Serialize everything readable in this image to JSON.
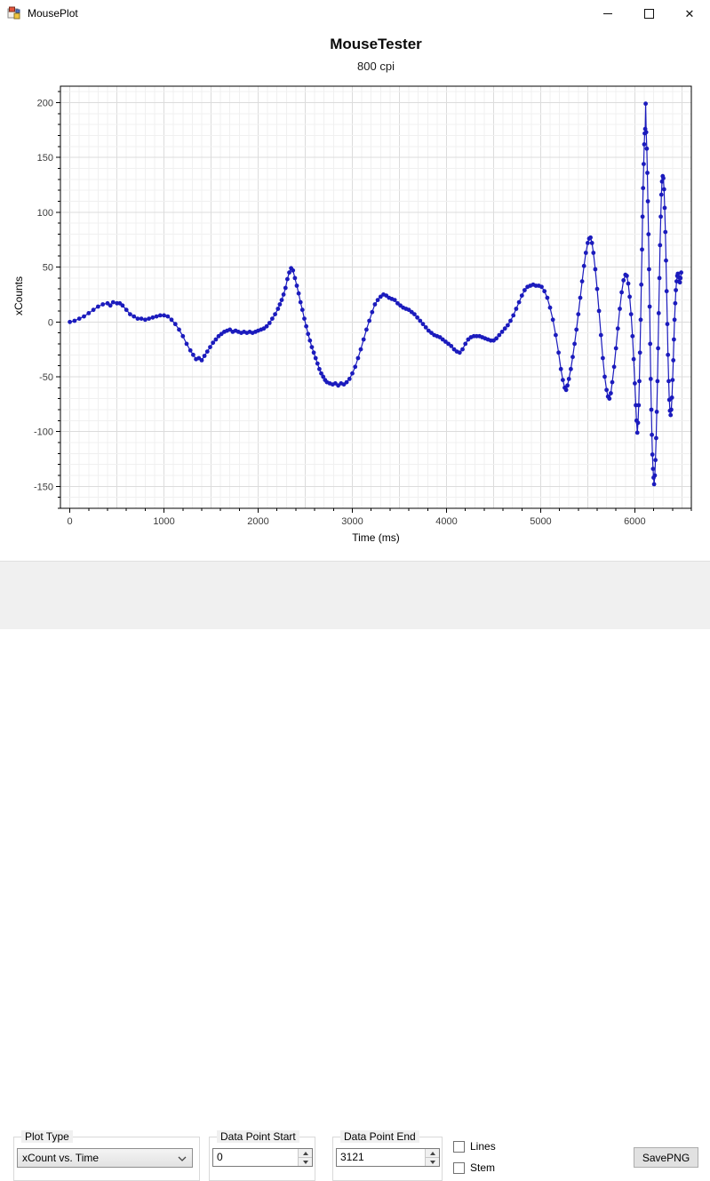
{
  "window": {
    "title": "MousePlot",
    "close_glyph": "✕"
  },
  "chart": {
    "title": "MouseTester",
    "subtitle": "800 cpi"
  },
  "chart_data": {
    "type": "line",
    "title": "MouseTester",
    "subtitle": "800 cpi",
    "xlabel": "Time (ms)",
    "ylabel": "xCounts",
    "xlim": [
      -100,
      6600
    ],
    "ylim": [
      -170,
      215
    ],
    "x_ticks": [
      0,
      1000,
      2000,
      3000,
      4000,
      5000,
      6000
    ],
    "y_ticks": [
      -150,
      -100,
      -50,
      0,
      50,
      100,
      150,
      200
    ],
    "x_minor_step": 200,
    "y_minor_step": 10,
    "grid": true,
    "legend_position": "none",
    "marker": "circle",
    "line_color": "#1b1bbd",
    "marker_color": "#1b1bbd",
    "grid_minor_color": "#f0f0f0",
    "grid_major_color": "#dcdcdc",
    "series": [
      {
        "name": "xCount",
        "points": [
          [
            0,
            0
          ],
          [
            50,
            1
          ],
          [
            100,
            3
          ],
          [
            150,
            5
          ],
          [
            200,
            8
          ],
          [
            250,
            11
          ],
          [
            300,
            14
          ],
          [
            350,
            16
          ],
          [
            400,
            17
          ],
          [
            430,
            15
          ],
          [
            460,
            18
          ],
          [
            500,
            17
          ],
          [
            530,
            17
          ],
          [
            560,
            15
          ],
          [
            600,
            11
          ],
          [
            640,
            7
          ],
          [
            680,
            5
          ],
          [
            720,
            3
          ],
          [
            760,
            3
          ],
          [
            800,
            2
          ],
          [
            840,
            3
          ],
          [
            880,
            4
          ],
          [
            920,
            5
          ],
          [
            960,
            6
          ],
          [
            1000,
            6
          ],
          [
            1040,
            5
          ],
          [
            1080,
            2
          ],
          [
            1120,
            -2
          ],
          [
            1160,
            -7
          ],
          [
            1200,
            -13
          ],
          [
            1240,
            -20
          ],
          [
            1280,
            -26
          ],
          [
            1310,
            -30
          ],
          [
            1340,
            -34
          ],
          [
            1370,
            -33
          ],
          [
            1400,
            -35
          ],
          [
            1430,
            -31
          ],
          [
            1460,
            -27
          ],
          [
            1490,
            -23
          ],
          [
            1520,
            -19
          ],
          [
            1550,
            -16
          ],
          [
            1580,
            -13
          ],
          [
            1610,
            -11
          ],
          [
            1640,
            -9
          ],
          [
            1670,
            -8
          ],
          [
            1700,
            -7
          ],
          [
            1730,
            -9
          ],
          [
            1760,
            -8
          ],
          [
            1790,
            -9
          ],
          [
            1820,
            -10
          ],
          [
            1850,
            -9
          ],
          [
            1880,
            -10
          ],
          [
            1910,
            -9
          ],
          [
            1940,
            -10
          ],
          [
            1970,
            -9
          ],
          [
            2000,
            -8
          ],
          [
            2030,
            -7
          ],
          [
            2060,
            -6
          ],
          [
            2090,
            -4
          ],
          [
            2120,
            -1
          ],
          [
            2150,
            3
          ],
          [
            2180,
            7
          ],
          [
            2210,
            12
          ],
          [
            2230,
            16
          ],
          [
            2250,
            20
          ],
          [
            2270,
            25
          ],
          [
            2290,
            31
          ],
          [
            2310,
            39
          ],
          [
            2330,
            45
          ],
          [
            2350,
            49
          ],
          [
            2370,
            47
          ],
          [
            2390,
            40
          ],
          [
            2410,
            33
          ],
          [
            2430,
            26
          ],
          [
            2450,
            18
          ],
          [
            2470,
            11
          ],
          [
            2490,
            3
          ],
          [
            2510,
            -4
          ],
          [
            2530,
            -11
          ],
          [
            2550,
            -17
          ],
          [
            2570,
            -23
          ],
          [
            2590,
            -28
          ],
          [
            2610,
            -33
          ],
          [
            2630,
            -38
          ],
          [
            2650,
            -43
          ],
          [
            2670,
            -47
          ],
          [
            2690,
            -50
          ],
          [
            2710,
            -53
          ],
          [
            2730,
            -55
          ],
          [
            2760,
            -56
          ],
          [
            2790,
            -57
          ],
          [
            2820,
            -56
          ],
          [
            2850,
            -58
          ],
          [
            2880,
            -56
          ],
          [
            2910,
            -57
          ],
          [
            2940,
            -55
          ],
          [
            2970,
            -52
          ],
          [
            3000,
            -47
          ],
          [
            3030,
            -41
          ],
          [
            3060,
            -33
          ],
          [
            3090,
            -25
          ],
          [
            3120,
            -16
          ],
          [
            3150,
            -7
          ],
          [
            3180,
            1
          ],
          [
            3210,
            9
          ],
          [
            3240,
            16
          ],
          [
            3270,
            20
          ],
          [
            3300,
            23
          ],
          [
            3330,
            25
          ],
          [
            3360,
            24
          ],
          [
            3390,
            22
          ],
          [
            3420,
            21
          ],
          [
            3450,
            20
          ],
          [
            3480,
            17
          ],
          [
            3510,
            15
          ],
          [
            3540,
            13
          ],
          [
            3570,
            12
          ],
          [
            3600,
            11
          ],
          [
            3630,
            9
          ],
          [
            3660,
            7
          ],
          [
            3690,
            4
          ],
          [
            3720,
            1
          ],
          [
            3750,
            -2
          ],
          [
            3780,
            -5
          ],
          [
            3810,
            -8
          ],
          [
            3840,
            -10
          ],
          [
            3870,
            -12
          ],
          [
            3900,
            -13
          ],
          [
            3930,
            -14
          ],
          [
            3960,
            -16
          ],
          [
            3990,
            -18
          ],
          [
            4020,
            -20
          ],
          [
            4050,
            -22
          ],
          [
            4080,
            -25
          ],
          [
            4110,
            -27
          ],
          [
            4140,
            -28
          ],
          [
            4170,
            -25
          ],
          [
            4200,
            -20
          ],
          [
            4230,
            -16
          ],
          [
            4260,
            -14
          ],
          [
            4290,
            -13
          ],
          [
            4320,
            -13
          ],
          [
            4350,
            -13
          ],
          [
            4380,
            -14
          ],
          [
            4410,
            -15
          ],
          [
            4440,
            -16
          ],
          [
            4470,
            -17
          ],
          [
            4500,
            -17
          ],
          [
            4530,
            -15
          ],
          [
            4560,
            -12
          ],
          [
            4590,
            -9
          ],
          [
            4620,
            -6
          ],
          [
            4650,
            -3
          ],
          [
            4680,
            1
          ],
          [
            4710,
            6
          ],
          [
            4740,
            12
          ],
          [
            4770,
            18
          ],
          [
            4800,
            24
          ],
          [
            4830,
            29
          ],
          [
            4860,
            32
          ],
          [
            4890,
            33
          ],
          [
            4920,
            34
          ],
          [
            4950,
            33
          ],
          [
            4980,
            33
          ],
          [
            5010,
            32
          ],
          [
            5040,
            28
          ],
          [
            5070,
            22
          ],
          [
            5100,
            13
          ],
          [
            5130,
            2
          ],
          [
            5160,
            -12
          ],
          [
            5190,
            -28
          ],
          [
            5215,
            -43
          ],
          [
            5235,
            -53
          ],
          [
            5255,
            -60
          ],
          [
            5270,
            -62
          ],
          [
            5285,
            -58
          ],
          [
            5300,
            -52
          ],
          [
            5320,
            -43
          ],
          [
            5340,
            -32
          ],
          [
            5360,
            -20
          ],
          [
            5380,
            -7
          ],
          [
            5400,
            7
          ],
          [
            5420,
            22
          ],
          [
            5440,
            37
          ],
          [
            5460,
            51
          ],
          [
            5480,
            63
          ],
          [
            5500,
            72
          ],
          [
            5515,
            76
          ],
          [
            5530,
            77
          ],
          [
            5545,
            72
          ],
          [
            5560,
            63
          ],
          [
            5580,
            48
          ],
          [
            5600,
            30
          ],
          [
            5620,
            10
          ],
          [
            5640,
            -12
          ],
          [
            5660,
            -33
          ],
          [
            5680,
            -50
          ],
          [
            5700,
            -62
          ],
          [
            5715,
            -68
          ],
          [
            5730,
            -70
          ],
          [
            5745,
            -65
          ],
          [
            5760,
            -55
          ],
          [
            5780,
            -41
          ],
          [
            5800,
            -24
          ],
          [
            5820,
            -6
          ],
          [
            5840,
            12
          ],
          [
            5860,
            27
          ],
          [
            5880,
            38
          ],
          [
            5900,
            43
          ],
          [
            5915,
            42
          ],
          [
            5930,
            35
          ],
          [
            5945,
            23
          ],
          [
            5960,
            7
          ],
          [
            5975,
            -13
          ],
          [
            5988,
            -34
          ],
          [
            6000,
            -56
          ],
          [
            6010,
            -76
          ],
          [
            6018,
            -90
          ],
          [
            6026,
            -101
          ],
          [
            6034,
            -92
          ],
          [
            6041,
            -76
          ],
          [
            6048,
            -54
          ],
          [
            6055,
            -28
          ],
          [
            6062,
            2
          ],
          [
            6069,
            34
          ],
          [
            6076,
            66
          ],
          [
            6082,
            96
          ],
          [
            6088,
            122
          ],
          [
            6094,
            144
          ],
          [
            6100,
            162
          ],
          [
            6105,
            172
          ],
          [
            6110,
            176
          ],
          [
            6115,
            199
          ],
          [
            6121,
            173
          ],
          [
            6127,
            158
          ],
          [
            6133,
            136
          ],
          [
            6139,
            110
          ],
          [
            6145,
            80
          ],
          [
            6151,
            48
          ],
          [
            6157,
            14
          ],
          [
            6163,
            -20
          ],
          [
            6169,
            -52
          ],
          [
            6175,
            -80
          ],
          [
            6181,
            -103
          ],
          [
            6187,
            -121
          ],
          [
            6193,
            -134
          ],
          [
            6199,
            -142
          ],
          [
            6205,
            -148
          ],
          [
            6212,
            -140
          ],
          [
            6219,
            -126
          ],
          [
            6226,
            -106
          ],
          [
            6233,
            -82
          ],
          [
            6240,
            -54
          ],
          [
            6247,
            -24
          ],
          [
            6254,
            8
          ],
          [
            6261,
            40
          ],
          [
            6268,
            70
          ],
          [
            6275,
            96
          ],
          [
            6282,
            116
          ],
          [
            6289,
            128
          ],
          [
            6296,
            133
          ],
          [
            6303,
            131
          ],
          [
            6310,
            121
          ],
          [
            6317,
            104
          ],
          [
            6324,
            82
          ],
          [
            6331,
            56
          ],
          [
            6338,
            28
          ],
          [
            6345,
            -2
          ],
          [
            6352,
            -30
          ],
          [
            6359,
            -54
          ],
          [
            6366,
            -71
          ],
          [
            6373,
            -81
          ],
          [
            6380,
            -85
          ],
          [
            6387,
            -80
          ],
          [
            6394,
            -69
          ],
          [
            6401,
            -53
          ],
          [
            6408,
            -35
          ],
          [
            6415,
            -16
          ],
          [
            6422,
            2
          ],
          [
            6429,
            17
          ],
          [
            6436,
            29
          ],
          [
            6443,
            37
          ],
          [
            6450,
            42
          ],
          [
            6457,
            44
          ],
          [
            6464,
            41
          ],
          [
            6471,
            37
          ],
          [
            6478,
            36
          ],
          [
            6485,
            40
          ],
          [
            6492,
            45
          ]
        ]
      }
    ]
  },
  "controls": {
    "plot_type": {
      "label": "Plot Type",
      "value": "xCount vs. Time"
    },
    "data_point_start": {
      "label": "Data Point Start",
      "value": "0"
    },
    "data_point_end": {
      "label": "Data Point End",
      "value": "3121"
    },
    "lines_checkbox": {
      "label": "Lines",
      "checked": false
    },
    "stem_checkbox": {
      "label": "Stem",
      "checked": false
    },
    "save_button": {
      "label": "SavePNG"
    }
  }
}
